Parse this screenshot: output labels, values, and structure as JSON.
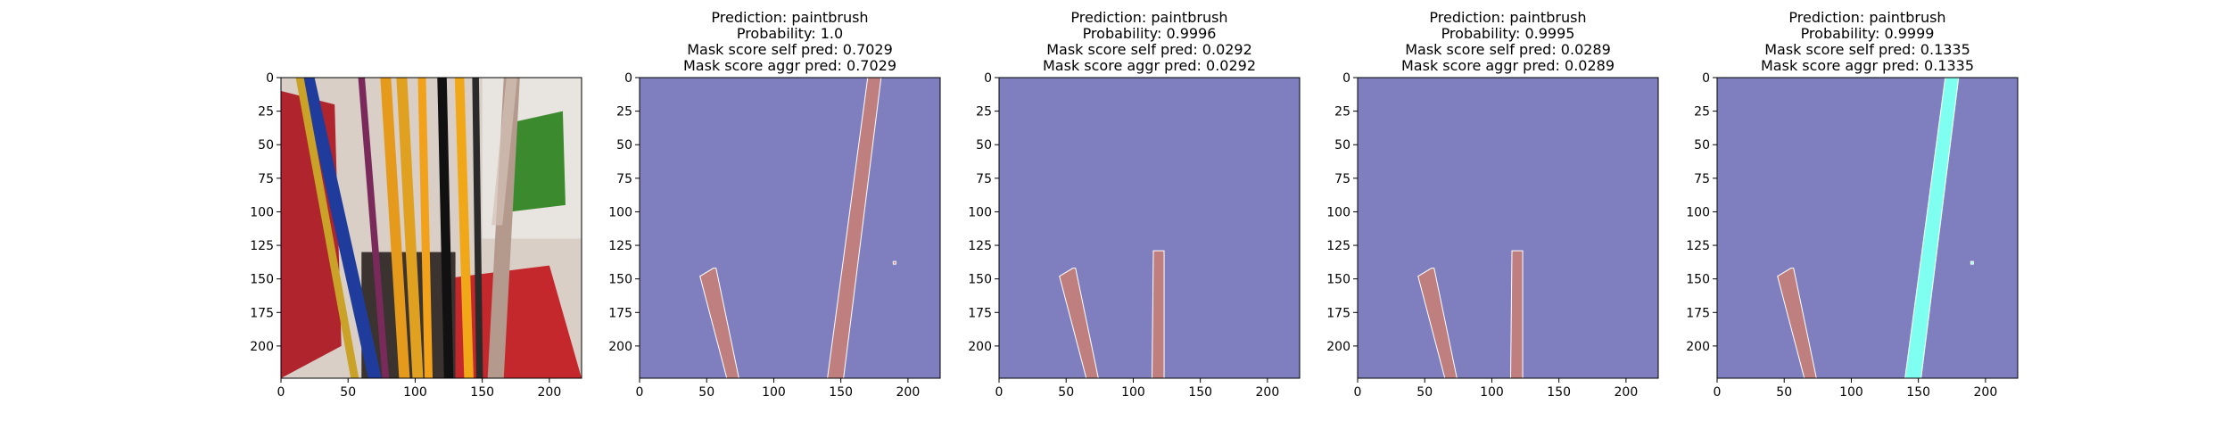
{
  "figure": {
    "panels": [
      {
        "kind": "photo",
        "title_lines": [],
        "image_subject": "photo of paintbrushes in a cup",
        "xticks": [
          0,
          50,
          100,
          150,
          200
        ],
        "yticks": [
          0,
          25,
          50,
          75,
          100,
          125,
          150,
          175,
          200
        ]
      },
      {
        "kind": "mask",
        "title_lines": [
          "Prediction: paintbrush",
          "Probability: 1.0",
          "Mask score self pred: 0.7029",
          "Mask score aggr pred: 0.7029"
        ],
        "xticks": [
          0,
          50,
          100,
          150,
          200
        ],
        "yticks": [
          0,
          25,
          50,
          75,
          100,
          125,
          150,
          175,
          200
        ],
        "regions": [
          {
            "color": "#c07f7f",
            "points": [
              [
                45,
                148
              ],
              [
                55,
                142
              ],
              [
                57,
                142
              ],
              [
                74,
                224
              ],
              [
                65,
                224
              ]
            ]
          },
          {
            "color": "#c07f7f",
            "points": [
              [
                170,
                0
              ],
              [
                180,
                0
              ],
              [
                152,
                224
              ],
              [
                140,
                224
              ]
            ]
          },
          {
            "color": "#c07f7f",
            "points": [
              [
                189,
                137
              ],
              [
                191,
                137
              ],
              [
                191,
                139
              ],
              [
                189,
                139
              ]
            ]
          }
        ]
      },
      {
        "kind": "mask",
        "title_lines": [
          "Prediction: paintbrush",
          "Probability: 0.9996",
          "Mask score self pred: 0.0292",
          "Mask score aggr pred: 0.0292"
        ],
        "xticks": [
          0,
          50,
          100,
          150,
          200
        ],
        "yticks": [
          0,
          25,
          50,
          75,
          100,
          125,
          150,
          175,
          200
        ],
        "regions": [
          {
            "color": "#c07f7f",
            "points": [
              [
                45,
                148
              ],
              [
                55,
                142
              ],
              [
                57,
                142
              ],
              [
                74,
                224
              ],
              [
                65,
                224
              ]
            ]
          },
          {
            "color": "#c07f7f",
            "points": [
              [
                115,
                129
              ],
              [
                123,
                129
              ],
              [
                123,
                224
              ],
              [
                114,
                224
              ]
            ]
          }
        ]
      },
      {
        "kind": "mask",
        "title_lines": [
          "Prediction: paintbrush",
          "Probability: 0.9995",
          "Mask score self pred: 0.0289",
          "Mask score aggr pred: 0.0289"
        ],
        "xticks": [
          0,
          50,
          100,
          150,
          200
        ],
        "yticks": [
          0,
          25,
          50,
          75,
          100,
          125,
          150,
          175,
          200
        ],
        "regions": [
          {
            "color": "#c07f7f",
            "points": [
              [
                45,
                148
              ],
              [
                55,
                142
              ],
              [
                57,
                142
              ],
              [
                74,
                224
              ],
              [
                65,
                224
              ]
            ]
          },
          {
            "color": "#c07f7f",
            "points": [
              [
                115,
                129
              ],
              [
                123,
                129
              ],
              [
                123,
                224
              ],
              [
                114,
                224
              ]
            ]
          }
        ]
      },
      {
        "kind": "mask",
        "title_lines": [
          "Prediction: paintbrush",
          "Probability: 0.9999",
          "Mask score self pred: 0.1335",
          "Mask score aggr pred: 0.1335"
        ],
        "xticks": [
          0,
          50,
          100,
          150,
          200
        ],
        "yticks": [
          0,
          25,
          50,
          75,
          100,
          125,
          150,
          175,
          200
        ],
        "regions": [
          {
            "color": "#c07f7f",
            "points": [
              [
                45,
                148
              ],
              [
                55,
                142
              ],
              [
                57,
                142
              ],
              [
                74,
                224
              ],
              [
                65,
                224
              ]
            ]
          },
          {
            "color": "#7ffff0",
            "points": [
              [
                170,
                0
              ],
              [
                180,
                0
              ],
              [
                152,
                224
              ],
              [
                140,
                224
              ]
            ]
          },
          {
            "color": "#7ffff0",
            "points": [
              [
                189,
                137
              ],
              [
                191,
                137
              ],
              [
                191,
                139
              ],
              [
                189,
                139
              ]
            ]
          }
        ]
      }
    ],
    "colors": {
      "mask_background": "#7f7fbf",
      "mask_red": "#c07f7f",
      "mask_cyan": "#7ffff0"
    }
  },
  "chart_data": [
    {
      "type": "heatmap",
      "title": "",
      "xlim": [
        0,
        224
      ],
      "ylim": [
        224,
        0
      ],
      "xticks": [
        0,
        50,
        100,
        150,
        200
      ],
      "yticks": [
        0,
        25,
        50,
        75,
        100,
        125,
        150,
        175,
        200
      ],
      "content": "input image"
    },
    {
      "type": "heatmap",
      "title": "Prediction: paintbrush\nProbability: 1.0\nMask score self pred: 0.7029\nMask score aggr pred: 0.7029",
      "xlim": [
        0,
        224
      ],
      "ylim": [
        224,
        0
      ],
      "xticks": [
        0,
        50,
        100,
        150,
        200
      ],
      "yticks": [
        0,
        25,
        50,
        75,
        100,
        125,
        150,
        175,
        200
      ]
    },
    {
      "type": "heatmap",
      "title": "Prediction: paintbrush\nProbability: 0.9996\nMask score self pred: 0.0292\nMask score aggr pred: 0.0292",
      "xlim": [
        0,
        224
      ],
      "ylim": [
        224,
        0
      ],
      "xticks": [
        0,
        50,
        100,
        150,
        200
      ],
      "yticks": [
        0,
        25,
        50,
        75,
        100,
        125,
        150,
        175,
        200
      ]
    },
    {
      "type": "heatmap",
      "title": "Prediction: paintbrush\nProbability: 0.9995\nMask score self pred: 0.0289\nMask score aggr pred: 0.0289",
      "xlim": [
        0,
        224
      ],
      "ylim": [
        224,
        0
      ],
      "xticks": [
        0,
        50,
        100,
        150,
        200
      ],
      "yticks": [
        0,
        25,
        50,
        75,
        100,
        125,
        150,
        175,
        200
      ]
    },
    {
      "type": "heatmap",
      "title": "Prediction: paintbrush\nProbability: 0.9999\nMask score self pred: 0.1335\nMask score aggr pred: 0.1335",
      "xlim": [
        0,
        224
      ],
      "ylim": [
        224,
        0
      ],
      "xticks": [
        0,
        50,
        100,
        150,
        200
      ],
      "yticks": [
        0,
        25,
        50,
        75,
        100,
        125,
        150,
        175,
        200
      ]
    }
  ]
}
